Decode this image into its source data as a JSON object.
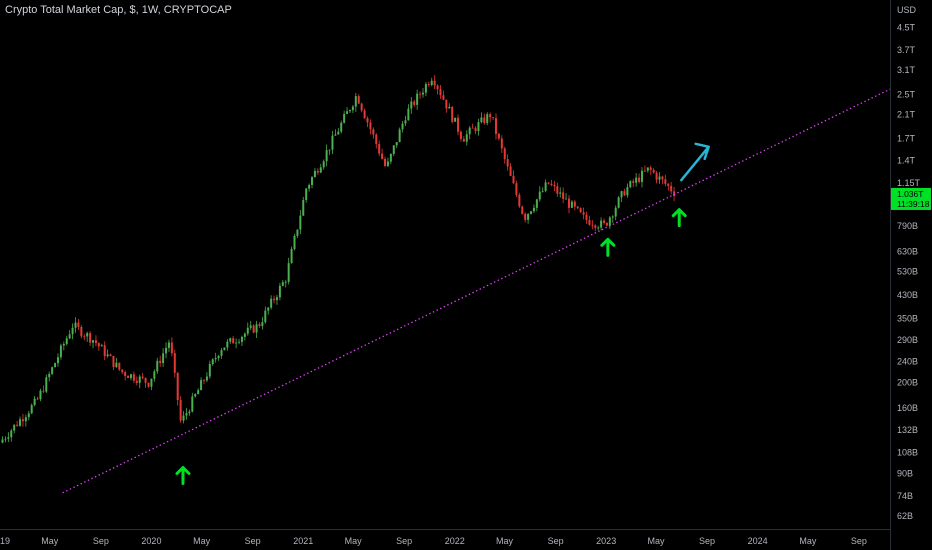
{
  "title": "Crypto Total Market Cap, $, 1W, CRYPTOCAP",
  "colors": {
    "background": "#000000",
    "up": "#4caf50",
    "down": "#e53935",
    "trendline": "#e040fb",
    "marker_arrow": "#00e025",
    "projection_arrow": "#29b6d6",
    "price_label": "#00e025"
  },
  "chart_data": {
    "type": "candlestick",
    "y_scale": "log",
    "y_unit": "USD",
    "y_tick_labels": [
      "USD",
      "4.5T",
      "3.7T",
      "3.1T",
      "2.5T",
      "2.1T",
      "1.7T",
      "1.4T",
      "1.15T",
      "790B",
      "630B",
      "530B",
      "430B",
      "350B",
      "290B",
      "240B",
      "200B",
      "160B",
      "132B",
      "108B",
      "90B",
      "74B",
      "62B"
    ],
    "x_tick_labels": [
      "19",
      "May",
      "Sep",
      "2020",
      "May",
      "Sep",
      "2021",
      "May",
      "Sep",
      "2022",
      "May",
      "Sep",
      "2023",
      "May",
      "Sep",
      "2024",
      "May",
      "Sep"
    ],
    "current_price_label": "1.036T",
    "current_countdown_label": "11:39:18",
    "close_path": [
      [
        "2018-12-31",
        118
      ],
      [
        "2019-03-31",
        170
      ],
      [
        "2019-06-25",
        330
      ],
      [
        "2019-08-15",
        290
      ],
      [
        "2019-10-20",
        220
      ],
      [
        "2019-12-25",
        200
      ],
      [
        "2020-02-14",
        290
      ],
      [
        "2020-03-12",
        140
      ],
      [
        "2020-06-15",
        270
      ],
      [
        "2020-09-15",
        330
      ],
      [
        "2020-11-20",
        500
      ],
      [
        "2021-01-08",
        1100
      ],
      [
        "2021-02-25",
        1500
      ],
      [
        "2021-05-10",
        2500
      ],
      [
        "2021-07-20",
        1300
      ],
      [
        "2021-09-05",
        2100
      ],
      [
        "2021-11-08",
        2950
      ],
      [
        "2022-01-20",
        1700
      ],
      [
        "2022-03-28",
        2100
      ],
      [
        "2022-05-12",
        1250
      ],
      [
        "2022-06-18",
        850
      ],
      [
        "2022-08-14",
        1150
      ],
      [
        "2022-10-15",
        920
      ],
      [
        "2022-11-09",
        840
      ],
      [
        "2022-12-28",
        790
      ],
      [
        "2023-02-15",
        1080
      ],
      [
        "2023-04-14",
        1300
      ],
      [
        "2023-06-15",
        1060
      ]
    ],
    "trendline": {
      "style": "dotted",
      "from": [
        "2019-06-01",
        76
      ],
      "to": [
        "2024-11-15",
        2620
      ]
    },
    "annotations": [
      {
        "type": "up-arrow",
        "date": "2020-03-17",
        "value": 100
      },
      {
        "type": "up-arrow",
        "date": "2023-01-05",
        "value": 740
      },
      {
        "type": "up-arrow",
        "date": "2023-06-26",
        "value": 960
      },
      {
        "type": "projection-arrow",
        "from": [
          "2023-07-01",
          1180
        ],
        "to": [
          "2023-09-05",
          1580
        ]
      }
    ],
    "grid": false,
    "legend": "none"
  }
}
